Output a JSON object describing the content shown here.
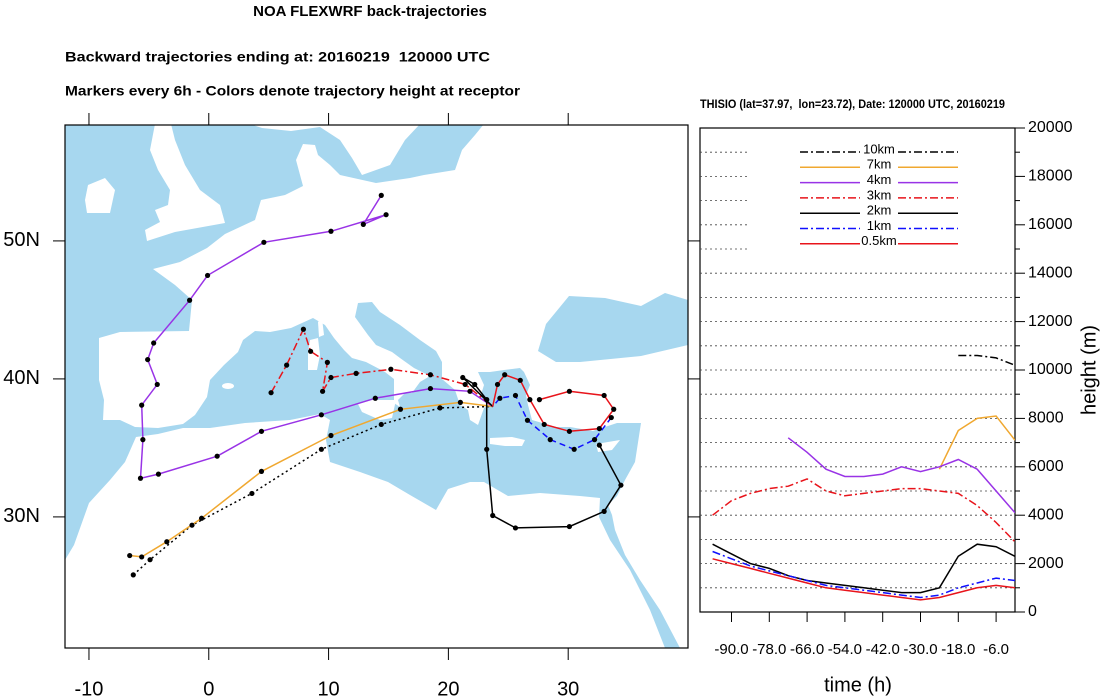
{
  "chart_data": [
    {
      "type": "map",
      "title": "NOA FLEXWRF back-trajectories",
      "subtitle": "Backward trajectories ending at: 20160219  120000 UTC",
      "annotation": "Markers every 6h - Colors denote trajectory height at receptor",
      "xlim": [
        -12,
        40
      ],
      "ylim": [
        20.5,
        58.4
      ],
      "xticks": [
        -10,
        0,
        10,
        20,
        30
      ],
      "yticks": [
        {
          "value": 30,
          "label": "30N"
        },
        {
          "value": 40,
          "label": "40N"
        },
        {
          "value": 50,
          "label": "50N"
        }
      ],
      "marker_color": "#000000",
      "series": [
        {
          "color": "#000000",
          "style": "dotted",
          "x": [
            -6.3,
            -4.9,
            -1.4,
            3.6,
            9.4,
            14.4,
            19.3,
            23.7
          ],
          "y": [
            25.8,
            26.9,
            29.4,
            31.7,
            34.9,
            36.7,
            37.9,
            38.0
          ]
        },
        {
          "color": "#f0a830",
          "style": "solid",
          "x": [
            -6.6,
            -5.6,
            -3.5,
            -0.6,
            4.4,
            10.2,
            16.0,
            21.0,
            23.7
          ],
          "y": [
            27.2,
            27.1,
            28.2,
            29.9,
            33.3,
            35.9,
            37.8,
            38.3,
            38.0
          ]
        },
        {
          "color": "#9933e6",
          "style": "solid",
          "x": [
            14.4,
            12.9,
            14.8,
            10.2,
            4.6,
            -0.1,
            -1.6,
            -4.6,
            -5.1,
            -4.3,
            -5.6,
            -5.5,
            -5.7,
            -4.2,
            0.7,
            4.4,
            9.4,
            13.9,
            18.5,
            21.8,
            23.7
          ],
          "y": [
            53.3,
            51.2,
            51.9,
            50.7,
            49.9,
            47.5,
            45.7,
            42.6,
            41.4,
            39.6,
            38.1,
            35.6,
            32.8,
            33.1,
            34.4,
            36.2,
            37.4,
            38.6,
            39.3,
            39.1,
            38.0
          ]
        },
        {
          "color": "#e8141b",
          "style": "dashdot",
          "x": [
            5.2,
            6.5,
            7.9,
            8.5,
            9.9,
            9.5,
            10.2,
            12.3,
            15.2,
            18.5,
            21.4,
            23.7
          ],
          "y": [
            39.0,
            41.0,
            43.6,
            42.0,
            41.2,
            39.1,
            40.1,
            40.4,
            40.7,
            40.3,
            39.6,
            38.0
          ]
        },
        {
          "color": "#000000",
          "style": "solid",
          "x": [
            32.6,
            34.4,
            33.0,
            30.1,
            25.6,
            23.7,
            23.2,
            23.2,
            22.2,
            21.2,
            23.7
          ],
          "y": [
            35.2,
            32.3,
            30.4,
            29.3,
            29.2,
            30.1,
            34.9,
            38.5,
            39.6,
            40.1,
            38.0
          ]
        },
        {
          "color": "#1010ff",
          "style": "dashed",
          "x": [
            33.6,
            32.2,
            30.5,
            28.5,
            26.6,
            25.6,
            24.3,
            23.7
          ],
          "y": [
            37.2,
            35.6,
            34.9,
            35.6,
            37.0,
            38.8,
            38.6,
            38.0
          ]
        },
        {
          "color": "#e8141b",
          "style": "solid",
          "x": [
            27.6,
            30.1,
            33.0,
            33.8,
            32.6,
            30.1,
            28.0,
            26.8,
            26.0,
            24.7,
            24.1,
            23.7
          ],
          "y": [
            38.5,
            39.1,
            38.8,
            37.8,
            36.4,
            36.2,
            36.7,
            38.5,
            39.9,
            40.3,
            39.6,
            38.0
          ]
        }
      ]
    },
    {
      "type": "line",
      "title": "THISIO (lat=37.97,  lon=23.72), Date: 120000 UTC, 20160219",
      "xlabel": "time (h)",
      "ylabel": "height (m)",
      "x": [
        -96,
        -90,
        -84,
        -78,
        -72,
        -66,
        -60,
        -54,
        -48,
        -42,
        -36,
        -30,
        -24,
        -18,
        -12,
        -6,
        0
      ],
      "xlim": [
        -100,
        0
      ],
      "xticks": [
        {
          "value": -90,
          "label": "-90.0"
        },
        {
          "value": -78,
          "label": "-78.0"
        },
        {
          "value": -66,
          "label": "-66.0"
        },
        {
          "value": -54,
          "label": "-54.0"
        },
        {
          "value": -42,
          "label": "-42.0"
        },
        {
          "value": -30,
          "label": "-30.0"
        },
        {
          "value": -18,
          "label": "-18.0"
        },
        {
          "value": -6,
          "label": "-6.0"
        }
      ],
      "ylim": [
        0,
        20000
      ],
      "yticks": [
        0,
        2000,
        4000,
        6000,
        8000,
        10000,
        12000,
        14000,
        16000,
        18000,
        20000
      ],
      "yminorticks": [
        1000,
        3000,
        5000,
        7000,
        9000,
        11000,
        13000,
        15000,
        17000,
        19000
      ],
      "grid": true,
      "legend": "upper center",
      "series": [
        {
          "name": "10km",
          "color": "#000000",
          "style": "dashdot",
          "values": [
            null,
            null,
            null,
            null,
            null,
            null,
            null,
            null,
            null,
            null,
            null,
            null,
            null,
            10600,
            10600,
            10500,
            10200
          ]
        },
        {
          "name": "7km",
          "color": "#f0a830",
          "style": "solid",
          "values": [
            null,
            null,
            null,
            null,
            null,
            null,
            null,
            null,
            null,
            null,
            null,
            null,
            5900,
            7500,
            8000,
            8100,
            7100
          ]
        },
        {
          "name": "4km",
          "color": "#9933e6",
          "style": "solid",
          "values": [
            null,
            null,
            null,
            null,
            7200,
            6600,
            5900,
            5600,
            5600,
            5700,
            6000,
            5800,
            6000,
            6300,
            5900,
            5000,
            4100
          ]
        },
        {
          "name": "3km",
          "color": "#e8141b",
          "style": "dashdot",
          "values": [
            4000,
            4600,
            4900,
            5100,
            5200,
            5500,
            5000,
            4800,
            4900,
            5000,
            5100,
            5100,
            5000,
            4900,
            4400,
            3700,
            2900
          ]
        },
        {
          "name": "2km",
          "color": "#000000",
          "style": "solid",
          "values": [
            2800,
            2400,
            2000,
            1800,
            1500,
            1300,
            1200,
            1100,
            1000,
            900,
            800,
            800,
            1000,
            2300,
            2800,
            2700,
            2300
          ]
        },
        {
          "name": "1km",
          "color": "#1010ff",
          "style": "dashdot",
          "values": [
            2500,
            2200,
            1900,
            1700,
            1500,
            1300,
            1100,
            1000,
            900,
            800,
            700,
            600,
            700,
            1000,
            1200,
            1400,
            1300
          ]
        },
        {
          "name": "0.5km",
          "color": "#e8141b",
          "style": "solid",
          "values": [
            2200,
            2000,
            1800,
            1600,
            1400,
            1200,
            1000,
            900,
            800,
            700,
            600,
            500,
            600,
            800,
            1000,
            1100,
            1000
          ]
        }
      ]
    }
  ]
}
